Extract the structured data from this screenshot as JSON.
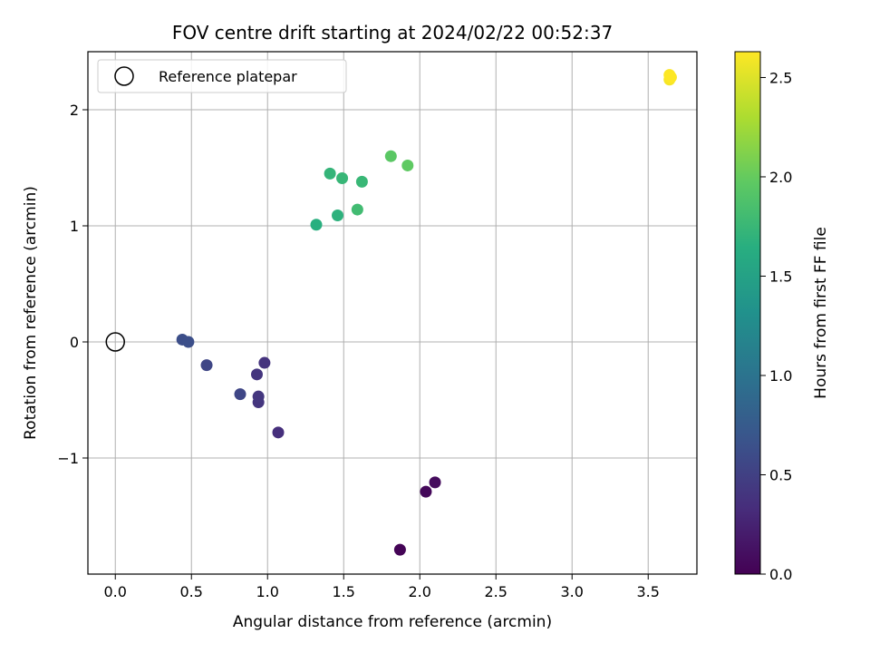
{
  "chart_data": {
    "type": "scatter",
    "title": "FOV centre drift starting at 2024/02/22 00:52:37",
    "xlabel": "Angular distance from reference (arcmin)",
    "ylabel": "Rotation from reference (arcmin)",
    "xlim": [
      -0.18,
      3.82
    ],
    "ylim": [
      -2.0,
      2.5
    ],
    "xticks": [
      0.0,
      0.5,
      1.0,
      1.5,
      2.0,
      2.5,
      3.0,
      3.5
    ],
    "xtick_labels": [
      "0.0",
      "0.5",
      "1.0",
      "1.5",
      "2.0",
      "2.5",
      "3.0",
      "3.5"
    ],
    "yticks": [
      -1,
      0,
      1,
      2
    ],
    "ytick_labels": [
      "−1",
      "0",
      "1",
      "2"
    ],
    "grid": true,
    "legend": {
      "position": "top-left",
      "entries": [
        "Reference platepar"
      ]
    },
    "reference_point": {
      "x": 0.0,
      "y": 0.0
    },
    "colorbar": {
      "label": "Hours from first FF file",
      "colormap": "viridis",
      "range": [
        0.0,
        2.63
      ],
      "ticks": [
        0.0,
        0.5,
        1.0,
        1.5,
        2.0,
        2.5
      ],
      "tick_labels": [
        "0.0",
        "0.5",
        "1.0",
        "1.5",
        "2.0",
        "2.5"
      ]
    },
    "points": [
      {
        "x": 1.87,
        "y": -1.79,
        "c": 0.02
      },
      {
        "x": 2.04,
        "y": -1.29,
        "c": 0.05
      },
      {
        "x": 2.1,
        "y": -1.21,
        "c": 0.08
      },
      {
        "x": 1.07,
        "y": -0.78,
        "c": 0.35
      },
      {
        "x": 0.94,
        "y": -0.52,
        "c": 0.4
      },
      {
        "x": 0.94,
        "y": -0.47,
        "c": 0.42
      },
      {
        "x": 0.93,
        "y": -0.28,
        "c": 0.4
      },
      {
        "x": 0.98,
        "y": -0.18,
        "c": 0.38
      },
      {
        "x": 0.82,
        "y": -0.45,
        "c": 0.55
      },
      {
        "x": 0.6,
        "y": -0.2,
        "c": 0.55
      },
      {
        "x": 0.44,
        "y": 0.02,
        "c": 0.62
      },
      {
        "x": 0.48,
        "y": 0.0,
        "c": 0.63
      },
      {
        "x": 1.32,
        "y": 1.01,
        "c": 1.65
      },
      {
        "x": 1.46,
        "y": 1.09,
        "c": 1.68
      },
      {
        "x": 1.59,
        "y": 1.14,
        "c": 1.8
      },
      {
        "x": 1.41,
        "y": 1.45,
        "c": 1.72
      },
      {
        "x": 1.49,
        "y": 1.41,
        "c": 1.74
      },
      {
        "x": 1.62,
        "y": 1.38,
        "c": 1.75
      },
      {
        "x": 1.81,
        "y": 1.6,
        "c": 1.95
      },
      {
        "x": 1.92,
        "y": 1.52,
        "c": 1.97
      },
      {
        "x": 3.64,
        "y": 2.26,
        "c": 2.6
      },
      {
        "x": 3.64,
        "y": 2.3,
        "c": 2.62
      },
      {
        "x": 3.65,
        "y": 2.28,
        "c": 2.63
      }
    ]
  }
}
